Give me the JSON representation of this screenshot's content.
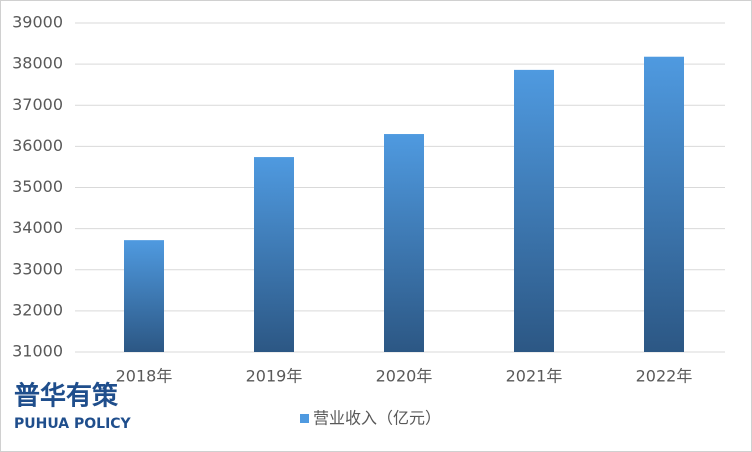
{
  "chart_data": {
    "type": "bar",
    "categories": [
      "2018年",
      "2019年",
      "2020年",
      "2021年",
      "2022年"
    ],
    "series": [
      {
        "name": "营业收入（亿元）",
        "color": "#4f9ae0",
        "values": [
          33720,
          35740,
          36300,
          37860,
          38180
        ]
      }
    ],
    "ylim": [
      31000,
      39000
    ],
    "yticks": [
      31000,
      32000,
      33000,
      34000,
      35000,
      36000,
      37000,
      38000,
      39000
    ],
    "grid": true,
    "legend": "bottom"
  },
  "watermark": {
    "name": "普华有策",
    "name_en": "PUHUA POLICY"
  }
}
